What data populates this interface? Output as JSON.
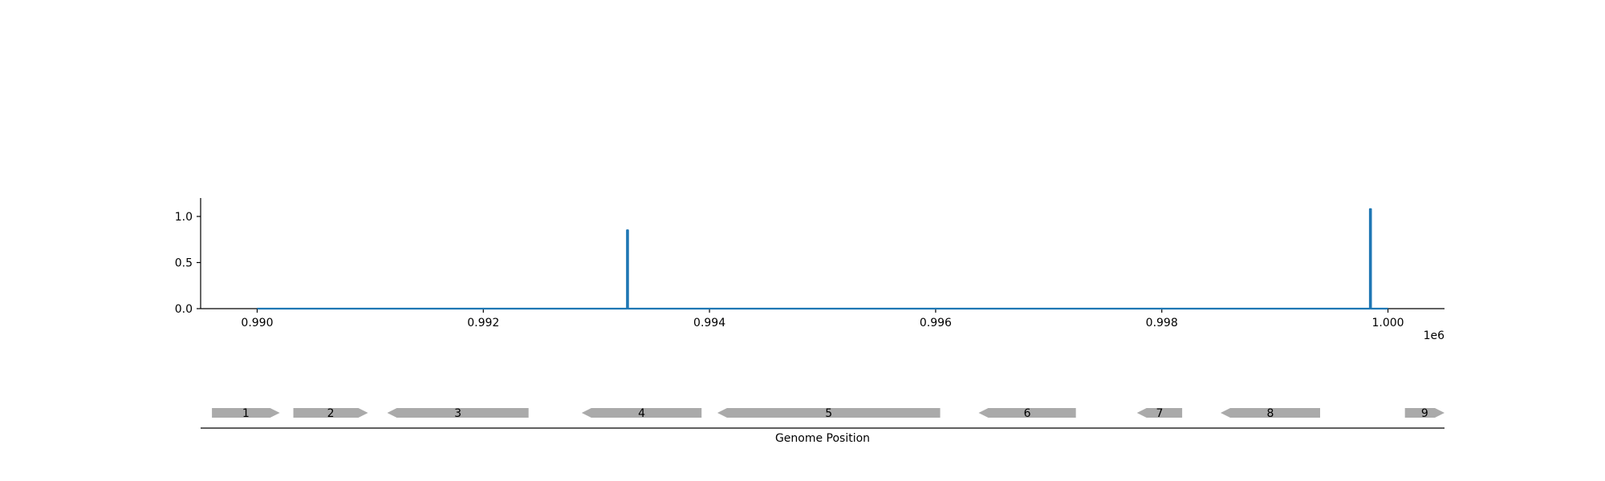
{
  "chart_data": [
    {
      "type": "line",
      "title": "",
      "xlabel": "",
      "ylabel": "",
      "x_offset_label": "1e6",
      "xlim": [
        989500,
        1000500
      ],
      "ylim": [
        0,
        1.2
      ],
      "grid": false,
      "x_ticks": [
        {
          "value": 990000,
          "label": "0.990"
        },
        {
          "value": 992000,
          "label": "0.992"
        },
        {
          "value": 994000,
          "label": "0.994"
        },
        {
          "value": 996000,
          "label": "0.996"
        },
        {
          "value": 998000,
          "label": "0.998"
        },
        {
          "value": 1000000,
          "label": "1.000"
        }
      ],
      "y_ticks": [
        {
          "value": 0,
          "label": "0.0"
        },
        {
          "value": 0.5,
          "label": "0.5"
        },
        {
          "value": 1.0,
          "label": "1.0"
        }
      ],
      "series": [
        {
          "color": "#1f77b4",
          "x": [
            990000,
            993270,
            993270,
            993280,
            993280,
            999840,
            999840,
            999850,
            999850,
            1000000
          ],
          "y": [
            0,
            0,
            0.85,
            0.85,
            0,
            0,
            1.08,
            1.08,
            0,
            0
          ]
        }
      ]
    },
    {
      "type": "gene_track",
      "xlabel": "Genome Position",
      "xlim": [
        989500,
        1000500
      ],
      "feature_color": "#aaaaaa",
      "genes": [
        {
          "label": "1",
          "start": 989600,
          "end": 990200,
          "strand": "+"
        },
        {
          "label": "2",
          "start": 990320,
          "end": 990980,
          "strand": "+"
        },
        {
          "label": "3",
          "start": 991150,
          "end": 992400,
          "strand": "-"
        },
        {
          "label": "4",
          "start": 992870,
          "end": 993930,
          "strand": "-"
        },
        {
          "label": "5",
          "start": 994070,
          "end": 996040,
          "strand": "-"
        },
        {
          "label": "6",
          "start": 996380,
          "end": 997240,
          "strand": "-"
        },
        {
          "label": "7",
          "start": 997780,
          "end": 998180,
          "strand": "-"
        },
        {
          "label": "8",
          "start": 998520,
          "end": 999400,
          "strand": "-"
        },
        {
          "label": "9",
          "start": 1000150,
          "end": 1000500,
          "strand": "+"
        }
      ]
    }
  ]
}
